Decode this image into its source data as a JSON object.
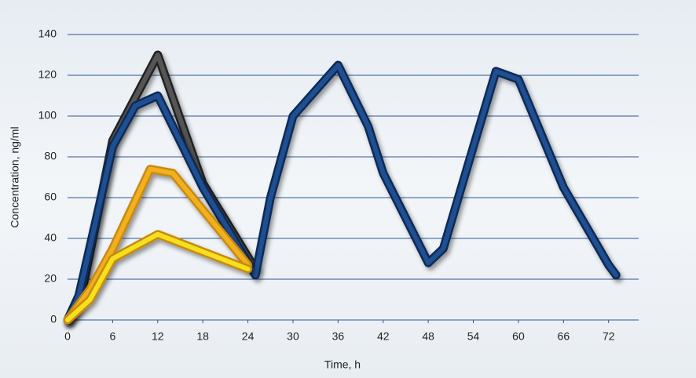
{
  "chart_data": {
    "type": "line",
    "x_label": "Time, h",
    "y_label": "Concentration, ng/ml",
    "xlim": [
      0,
      76
    ],
    "ylim": [
      0,
      140
    ],
    "xticks": [
      0,
      6,
      12,
      18,
      24,
      30,
      36,
      42,
      48,
      54,
      60,
      66,
      72
    ],
    "yticks": [
      0,
      20,
      40,
      60,
      80,
      100,
      120,
      140
    ],
    "grid": true,
    "series": [
      {
        "color": "#555555",
        "x": [
          0,
          2,
          6,
          12,
          18,
          25
        ],
        "values": [
          0,
          15,
          88,
          130,
          67,
          25
        ]
      },
      {
        "color": "#1f4f92",
        "x": [
          0,
          1.5,
          6,
          9,
          12,
          18,
          25,
          27,
          30,
          36,
          40,
          42,
          48,
          50,
          54,
          57,
          60,
          66,
          72,
          73
        ],
        "values": [
          0,
          12,
          85,
          105,
          110,
          65,
          22,
          60,
          100,
          125,
          95,
          72,
          28,
          35,
          85,
          122,
          118,
          65,
          27,
          22
        ]
      },
      {
        "color": "#f0b020",
        "x": [
          0,
          3,
          6,
          11,
          14,
          24
        ],
        "values": [
          0,
          15,
          35,
          74,
          72,
          27
        ]
      },
      {
        "color": "#f5e020",
        "x": [
          0,
          3,
          6,
          12,
          24
        ],
        "values": [
          0,
          10,
          30,
          42,
          25
        ]
      }
    ]
  }
}
